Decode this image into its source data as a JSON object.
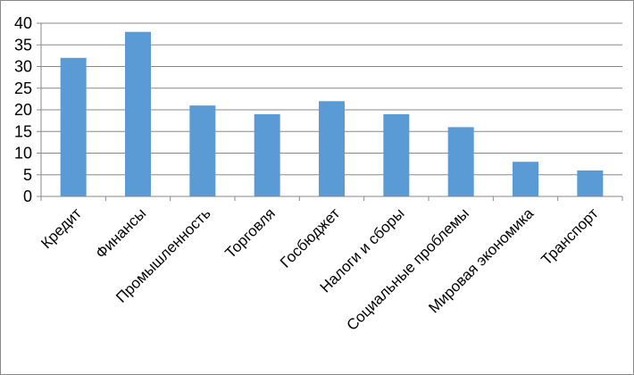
{
  "chart_data": {
    "type": "bar",
    "categories": [
      "Кредит",
      "Финансы",
      "Промышленность",
      "Торговля",
      "Госбюджет",
      "Налоги и сборы",
      "Социальные проблемы",
      "Мировая экономика",
      "Транспорт"
    ],
    "values": [
      32,
      38,
      21,
      19,
      22,
      19,
      16,
      8,
      6
    ],
    "ylim": [
      0,
      40
    ],
    "yticks": [
      0,
      5,
      10,
      15,
      20,
      25,
      30,
      35,
      40
    ],
    "grid": true,
    "legend": "none",
    "bar_color": "#5B9BD5",
    "grid_color": "#888888"
  }
}
